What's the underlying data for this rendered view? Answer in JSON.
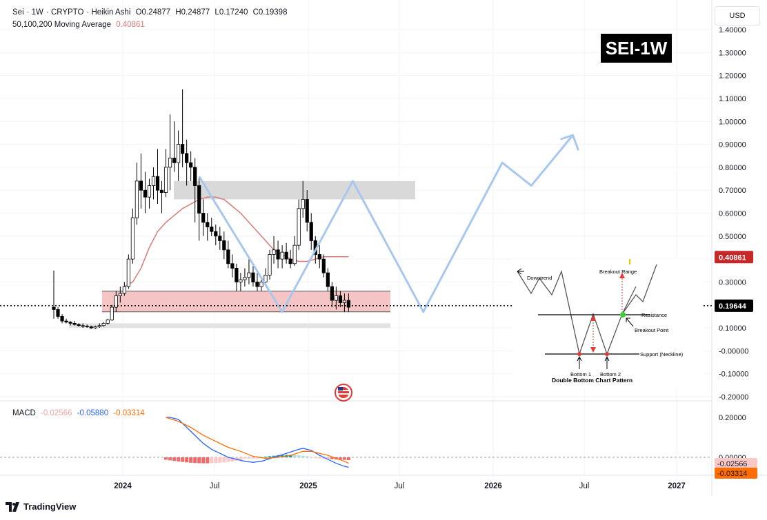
{
  "header": {
    "symbol": "Sei",
    "interval": "1W",
    "exchange": "CRYPTO",
    "chart_style": "Heikin Ashi",
    "open_label": "O",
    "open": "0.24877",
    "high_label": "H",
    "high": "0.24877",
    "low_label": "L",
    "low": "0.17240",
    "close_label": "C",
    "close": "0.19398",
    "ma_label": "50,100,200 Moving Average",
    "ma_value": "0.40861"
  },
  "badge": "SEI-1W",
  "currency": "USD",
  "footer": {
    "brand": "TradingView"
  },
  "colors": {
    "up": "#ffffff",
    "down": "#000000",
    "ma": "#d77a78",
    "projection": "#a7c7ef",
    "support_zone": "#f4c5c4",
    "resistance_zone": "#d9d9d9",
    "macd_line": "#2962ff",
    "signal_line": "#ff6d00",
    "hist_neg": "#f06a6a",
    "hist_pos": "#26a69a"
  },
  "chart_data": {
    "type": "candlestick",
    "price_axis": {
      "ticks": [
        "1.40000",
        "1.30000",
        "1.20000",
        "1.10000",
        "1.00000",
        "0.90000",
        "0.80000",
        "0.70000",
        "0.60000",
        "0.50000",
        "0.40000",
        "0.30000",
        "0.20000",
        "0.10000",
        "-0.00000",
        "-0.10000",
        "-0.20000"
      ],
      "ylim": [
        -0.2,
        1.4
      ]
    },
    "time_axis": {
      "ticks": [
        "2024",
        "Jul",
        "2025",
        "Jul",
        "2026",
        "Jul",
        "2027"
      ]
    },
    "last_price": "0.19644",
    "ma_price": "0.40861",
    "candles": [
      [
        0.19,
        0.35,
        0.14,
        0.18
      ],
      [
        0.18,
        0.19,
        0.14,
        0.15
      ],
      [
        0.15,
        0.16,
        0.12,
        0.13
      ],
      [
        0.13,
        0.14,
        0.12,
        0.125
      ],
      [
        0.125,
        0.13,
        0.11,
        0.12
      ],
      [
        0.12,
        0.13,
        0.11,
        0.115
      ],
      [
        0.115,
        0.12,
        0.105,
        0.11
      ],
      [
        0.11,
        0.12,
        0.1,
        0.108
      ],
      [
        0.108,
        0.115,
        0.1,
        0.105
      ],
      [
        0.105,
        0.11,
        0.095,
        0.1
      ],
      [
        0.1,
        0.11,
        0.095,
        0.105
      ],
      [
        0.105,
        0.12,
        0.1,
        0.11
      ],
      [
        0.11,
        0.125,
        0.105,
        0.12
      ],
      [
        0.12,
        0.14,
        0.115,
        0.135
      ],
      [
        0.135,
        0.2,
        0.13,
        0.19
      ],
      [
        0.19,
        0.26,
        0.17,
        0.24
      ],
      [
        0.24,
        0.28,
        0.21,
        0.25
      ],
      [
        0.25,
        0.3,
        0.24,
        0.28
      ],
      [
        0.28,
        0.42,
        0.27,
        0.4
      ],
      [
        0.4,
        0.62,
        0.38,
        0.58
      ],
      [
        0.58,
        0.82,
        0.55,
        0.74
      ],
      [
        0.74,
        0.86,
        0.62,
        0.7
      ],
      [
        0.7,
        0.78,
        0.6,
        0.67
      ],
      [
        0.67,
        0.75,
        0.62,
        0.72
      ],
      [
        0.72,
        0.8,
        0.66,
        0.76
      ],
      [
        0.76,
        0.88,
        0.64,
        0.7
      ],
      [
        0.7,
        0.74,
        0.6,
        0.69
      ],
      [
        0.69,
        0.88,
        0.67,
        0.8
      ],
      [
        0.8,
        1.03,
        0.7,
        0.84
      ],
      [
        0.84,
        1.0,
        0.78,
        0.82
      ],
      [
        0.82,
        0.96,
        0.74,
        0.9
      ],
      [
        0.9,
        1.14,
        0.8,
        0.86
      ],
      [
        0.86,
        0.92,
        0.72,
        0.82
      ],
      [
        0.82,
        0.87,
        0.74,
        0.8
      ],
      [
        0.8,
        0.84,
        0.56,
        0.72
      ],
      [
        0.72,
        0.76,
        0.48,
        0.6
      ],
      [
        0.6,
        0.66,
        0.5,
        0.56
      ],
      [
        0.56,
        0.6,
        0.48,
        0.54
      ],
      [
        0.54,
        0.58,
        0.5,
        0.52
      ],
      [
        0.52,
        0.55,
        0.46,
        0.5
      ],
      [
        0.5,
        0.54,
        0.44,
        0.48
      ],
      [
        0.48,
        0.52,
        0.4,
        0.44
      ],
      [
        0.44,
        0.48,
        0.36,
        0.38
      ],
      [
        0.38,
        0.42,
        0.32,
        0.36
      ],
      [
        0.36,
        0.38,
        0.26,
        0.3
      ],
      [
        0.3,
        0.34,
        0.26,
        0.31
      ],
      [
        0.31,
        0.36,
        0.28,
        0.32
      ],
      [
        0.32,
        0.4,
        0.29,
        0.34
      ],
      [
        0.34,
        0.38,
        0.28,
        0.3
      ],
      [
        0.3,
        0.34,
        0.26,
        0.28
      ],
      [
        0.28,
        0.32,
        0.26,
        0.3
      ],
      [
        0.3,
        0.36,
        0.28,
        0.33
      ],
      [
        0.33,
        0.44,
        0.31,
        0.42
      ],
      [
        0.42,
        0.5,
        0.38,
        0.44
      ],
      [
        0.44,
        0.48,
        0.36,
        0.4
      ],
      [
        0.4,
        0.46,
        0.36,
        0.43
      ],
      [
        0.43,
        0.47,
        0.38,
        0.4
      ],
      [
        0.4,
        0.44,
        0.36,
        0.38
      ],
      [
        0.38,
        0.5,
        0.37,
        0.46
      ],
      [
        0.46,
        0.66,
        0.44,
        0.62
      ],
      [
        0.62,
        0.74,
        0.58,
        0.66
      ],
      [
        0.66,
        0.7,
        0.52,
        0.56
      ],
      [
        0.56,
        0.6,
        0.44,
        0.48
      ],
      [
        0.48,
        0.5,
        0.38,
        0.42
      ],
      [
        0.42,
        0.46,
        0.36,
        0.4
      ],
      [
        0.4,
        0.42,
        0.32,
        0.34
      ],
      [
        0.34,
        0.36,
        0.26,
        0.28
      ],
      [
        0.28,
        0.3,
        0.19,
        0.22
      ],
      [
        0.22,
        0.28,
        0.18,
        0.24
      ],
      [
        0.24,
        0.26,
        0.19,
        0.21
      ],
      [
        0.21,
        0.25,
        0.17,
        0.22
      ],
      [
        0.22,
        0.25,
        0.17,
        0.19
      ]
    ],
    "moving_average": [
      [
        17,
        0.28
      ],
      [
        19,
        0.3
      ],
      [
        21,
        0.36
      ],
      [
        23,
        0.45
      ],
      [
        25,
        0.52
      ],
      [
        27,
        0.56
      ],
      [
        29,
        0.59
      ],
      [
        31,
        0.62
      ],
      [
        33,
        0.64
      ],
      [
        35,
        0.66
      ],
      [
        37,
        0.67
      ],
      [
        39,
        0.67
      ],
      [
        41,
        0.66
      ],
      [
        43,
        0.63
      ],
      [
        45,
        0.6
      ],
      [
        47,
        0.56
      ],
      [
        49,
        0.52
      ],
      [
        51,
        0.48
      ],
      [
        53,
        0.44
      ],
      [
        55,
        0.42
      ],
      [
        57,
        0.4
      ],
      [
        59,
        0.39
      ],
      [
        61,
        0.39
      ],
      [
        63,
        0.4
      ],
      [
        65,
        0.41
      ],
      [
        67,
        0.41
      ],
      [
        69,
        0.41
      ],
      [
        71,
        0.41
      ]
    ],
    "support_zone": [
      0.17,
      0.26
    ],
    "resistance_zone": [
      0.66,
      0.74
    ],
    "lower_zone": [
      0.1,
      0.12
    ],
    "projection_path": [
      [
        35,
        0.76
      ],
      [
        55,
        0.17
      ],
      [
        72,
        0.74
      ],
      [
        89,
        0.17
      ],
      [
        108,
        0.82
      ],
      [
        115,
        0.72
      ],
      [
        125,
        0.94
      ]
    ],
    "macd": {
      "label": "MACD",
      "hist": "-0.02566",
      "macd": "-0.05880",
      "signal": "-0.03314",
      "axis_ticks": [
        "0.20000",
        "0.00000"
      ],
      "ylim": [
        -0.08,
        0.24
      ]
    },
    "double_bottom": {
      "title": "Double Bottom Chart Pattern",
      "labels": [
        "Downtrend",
        "Breakout Range",
        "Resistance",
        "Breakout Point",
        "Support (Neckline)",
        "Bottom 1",
        "Bottom 2"
      ]
    }
  }
}
